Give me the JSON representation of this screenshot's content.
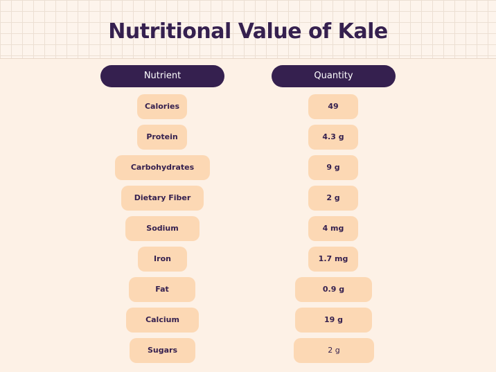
{
  "title": "Nutritional Value of Kale",
  "table": {
    "headers": {
      "nutrient": "Nutrient",
      "quantity": "Quantity"
    },
    "rows": [
      {
        "nutrient": "Calories",
        "quantity": "49"
      },
      {
        "nutrient": "Protein",
        "quantity": "4.3 g"
      },
      {
        "nutrient": "Carbohydrates",
        "quantity": "9 g"
      },
      {
        "nutrient": "Dietary Fiber",
        "quantity": "2 g"
      },
      {
        "nutrient": "Sodium",
        "quantity": "4 mg"
      },
      {
        "nutrient": "Iron",
        "quantity": "1.7 mg"
      },
      {
        "nutrient": "Fat",
        "quantity": "0.9 g"
      },
      {
        "nutrient": "Calcium",
        "quantity": "19 g"
      },
      {
        "nutrient": "Sugars",
        "quantity": "2 g"
      }
    ]
  },
  "colors": {
    "background": "#fdf1e6",
    "header_pill": "#35204f",
    "cell_pill": "#fcd8b4",
    "text": "#35204f"
  }
}
